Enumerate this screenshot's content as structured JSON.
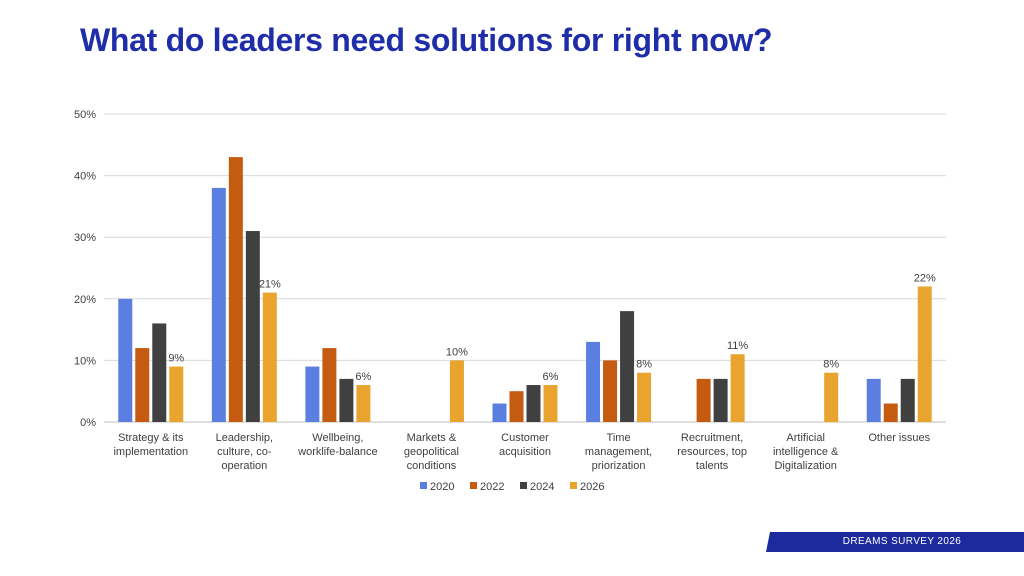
{
  "title": "What do leaders need solutions for right now?",
  "footer": {
    "label": "DREAMS SURVEY 2026"
  },
  "colors": {
    "title": "#1f2ea8",
    "footer_bg": "#1c2a9e"
  },
  "chart_data": {
    "type": "bar",
    "title": "",
    "xlabel": "",
    "ylabel": "",
    "ylim": [
      0,
      50
    ],
    "yticks": [
      "0%",
      "10%",
      "20%",
      "30%",
      "40%",
      "50%"
    ],
    "grid": true,
    "legend_position": "bottom",
    "categories": [
      [
        "Strategy & its",
        "implementation"
      ],
      [
        "Leadership,",
        "culture, co-",
        "operation"
      ],
      [
        "Wellbeing,",
        "worklife-balance"
      ],
      [
        "Markets &",
        "geopolitical",
        "conditions"
      ],
      [
        "Customer",
        "acquisition"
      ],
      [
        "Time",
        "management,",
        "priorization"
      ],
      [
        "Recruitment,",
        "resources, top",
        "talents"
      ],
      [
        "Artificial",
        "intelligence &",
        "Digitalization"
      ],
      [
        "Other issues"
      ]
    ],
    "series": [
      {
        "name": "2020",
        "color": "#5b7fe0",
        "values": [
          20,
          38,
          9,
          null,
          3,
          13,
          null,
          null,
          7
        ]
      },
      {
        "name": "2022",
        "color": "#c55a11",
        "values": [
          12,
          43,
          12,
          null,
          5,
          10,
          7,
          null,
          3
        ]
      },
      {
        "name": "2024",
        "color": "#404040",
        "values": [
          16,
          31,
          7,
          null,
          6,
          18,
          7,
          null,
          7
        ]
      },
      {
        "name": "2026",
        "color": "#e8a42e",
        "values": [
          9,
          21,
          6,
          10,
          6,
          8,
          11,
          8,
          22
        ],
        "data_labels": [
          "9%",
          "21%",
          "6%",
          "10%",
          "6%",
          "8%",
          "11%",
          "8%",
          "22%"
        ]
      }
    ]
  }
}
